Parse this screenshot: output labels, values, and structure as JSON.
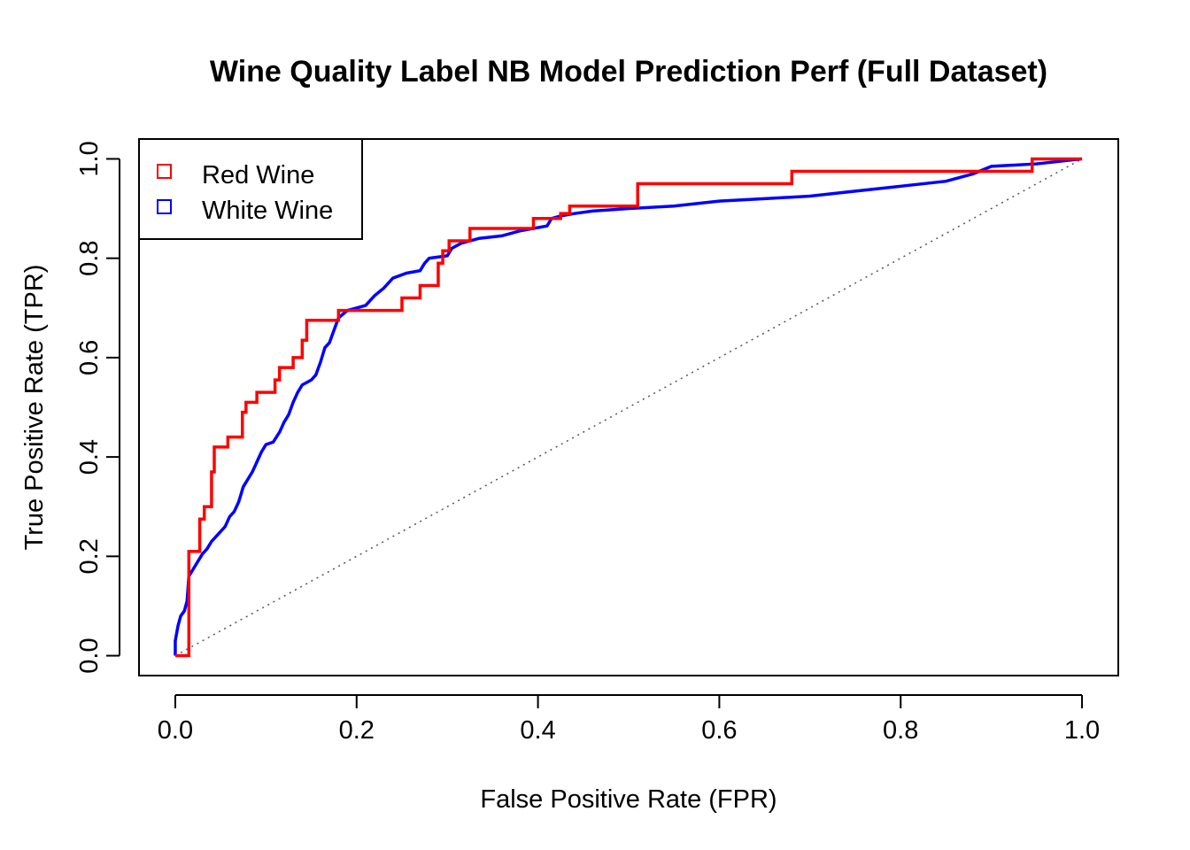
{
  "chart_data": {
    "type": "line",
    "title": "Wine Quality Label NB Model Prediction Perf (Full Dataset)",
    "xlabel": "False Positive Rate (FPR)",
    "ylabel": "True Positive Rate (TPR)",
    "xlim": [
      -0.04,
      1.04
    ],
    "ylim": [
      -0.04,
      1.04
    ],
    "xticks": [
      0.0,
      0.2,
      0.4,
      0.6,
      0.8,
      1.0
    ],
    "yticks": [
      0.0,
      0.2,
      0.4,
      0.6,
      0.8,
      1.0
    ],
    "xtick_labels": [
      "0.0",
      "0.2",
      "0.4",
      "0.6",
      "0.8",
      "1.0"
    ],
    "ytick_labels": [
      "0.0",
      "0.2",
      "0.4",
      "0.6",
      "0.8",
      "1.0"
    ],
    "legend_position": "top-left",
    "grid": false,
    "reference_line": {
      "x": [
        0,
        1
      ],
      "y": [
        0,
        1
      ],
      "style": "dotted",
      "color": "#555555"
    },
    "series": [
      {
        "name": "Red Wine",
        "color": "#ff0000",
        "points": [
          [
            0.0,
            0.0
          ],
          [
            0.015,
            0.0
          ],
          [
            0.015,
            0.21
          ],
          [
            0.027,
            0.21
          ],
          [
            0.027,
            0.275
          ],
          [
            0.032,
            0.275
          ],
          [
            0.032,
            0.3
          ],
          [
            0.04,
            0.3
          ],
          [
            0.04,
            0.37
          ],
          [
            0.043,
            0.37
          ],
          [
            0.043,
            0.42
          ],
          [
            0.058,
            0.42
          ],
          [
            0.058,
            0.44
          ],
          [
            0.074,
            0.44
          ],
          [
            0.074,
            0.49
          ],
          [
            0.078,
            0.49
          ],
          [
            0.078,
            0.51
          ],
          [
            0.09,
            0.51
          ],
          [
            0.09,
            0.53
          ],
          [
            0.11,
            0.53
          ],
          [
            0.11,
            0.555
          ],
          [
            0.115,
            0.555
          ],
          [
            0.115,
            0.58
          ],
          [
            0.13,
            0.58
          ],
          [
            0.13,
            0.6
          ],
          [
            0.14,
            0.6
          ],
          [
            0.14,
            0.635
          ],
          [
            0.145,
            0.635
          ],
          [
            0.145,
            0.675
          ],
          [
            0.18,
            0.675
          ],
          [
            0.18,
            0.695
          ],
          [
            0.25,
            0.695
          ],
          [
            0.25,
            0.72
          ],
          [
            0.27,
            0.72
          ],
          [
            0.27,
            0.745
          ],
          [
            0.29,
            0.745
          ],
          [
            0.29,
            0.79
          ],
          [
            0.295,
            0.79
          ],
          [
            0.295,
            0.815
          ],
          [
            0.302,
            0.815
          ],
          [
            0.302,
            0.835
          ],
          [
            0.325,
            0.835
          ],
          [
            0.325,
            0.86
          ],
          [
            0.395,
            0.86
          ],
          [
            0.395,
            0.88
          ],
          [
            0.425,
            0.88
          ],
          [
            0.425,
            0.89
          ],
          [
            0.435,
            0.89
          ],
          [
            0.435,
            0.905
          ],
          [
            0.51,
            0.905
          ],
          [
            0.51,
            0.95
          ],
          [
            0.68,
            0.95
          ],
          [
            0.68,
            0.975
          ],
          [
            0.945,
            0.975
          ],
          [
            0.945,
            1.0
          ],
          [
            1.0,
            1.0
          ]
        ]
      },
      {
        "name": "White Wine",
        "color": "#0000ff",
        "points": [
          [
            0.0,
            0.0
          ],
          [
            0.0,
            0.03
          ],
          [
            0.003,
            0.06
          ],
          [
            0.006,
            0.08
          ],
          [
            0.01,
            0.09
          ],
          [
            0.013,
            0.11
          ],
          [
            0.015,
            0.16
          ],
          [
            0.02,
            0.175
          ],
          [
            0.025,
            0.19
          ],
          [
            0.03,
            0.205
          ],
          [
            0.035,
            0.215
          ],
          [
            0.04,
            0.23
          ],
          [
            0.045,
            0.24
          ],
          [
            0.05,
            0.25
          ],
          [
            0.055,
            0.26
          ],
          [
            0.06,
            0.28
          ],
          [
            0.065,
            0.29
          ],
          [
            0.07,
            0.31
          ],
          [
            0.075,
            0.34
          ],
          [
            0.08,
            0.355
          ],
          [
            0.085,
            0.37
          ],
          [
            0.09,
            0.39
          ],
          [
            0.095,
            0.41
          ],
          [
            0.1,
            0.425
          ],
          [
            0.108,
            0.43
          ],
          [
            0.115,
            0.45
          ],
          [
            0.12,
            0.47
          ],
          [
            0.125,
            0.485
          ],
          [
            0.13,
            0.51
          ],
          [
            0.135,
            0.53
          ],
          [
            0.14,
            0.545
          ],
          [
            0.15,
            0.555
          ],
          [
            0.155,
            0.565
          ],
          [
            0.16,
            0.59
          ],
          [
            0.165,
            0.62
          ],
          [
            0.17,
            0.63
          ],
          [
            0.175,
            0.655
          ],
          [
            0.18,
            0.68
          ],
          [
            0.19,
            0.695
          ],
          [
            0.2,
            0.7
          ],
          [
            0.21,
            0.705
          ],
          [
            0.215,
            0.715
          ],
          [
            0.22,
            0.725
          ],
          [
            0.23,
            0.74
          ],
          [
            0.24,
            0.76
          ],
          [
            0.255,
            0.77
          ],
          [
            0.27,
            0.775
          ],
          [
            0.275,
            0.79
          ],
          [
            0.28,
            0.8
          ],
          [
            0.3,
            0.805
          ],
          [
            0.305,
            0.82
          ],
          [
            0.315,
            0.83
          ],
          [
            0.335,
            0.84
          ],
          [
            0.36,
            0.845
          ],
          [
            0.38,
            0.855
          ],
          [
            0.41,
            0.865
          ],
          [
            0.415,
            0.88
          ],
          [
            0.425,
            0.885
          ],
          [
            0.44,
            0.89
          ],
          [
            0.46,
            0.895
          ],
          [
            0.5,
            0.9
          ],
          [
            0.55,
            0.905
          ],
          [
            0.6,
            0.915
          ],
          [
            0.65,
            0.92
          ],
          [
            0.7,
            0.925
          ],
          [
            0.75,
            0.935
          ],
          [
            0.8,
            0.945
          ],
          [
            0.85,
            0.955
          ],
          [
            0.88,
            0.97
          ],
          [
            0.9,
            0.985
          ],
          [
            0.95,
            0.99
          ],
          [
            1.0,
            1.0
          ]
        ]
      }
    ]
  }
}
